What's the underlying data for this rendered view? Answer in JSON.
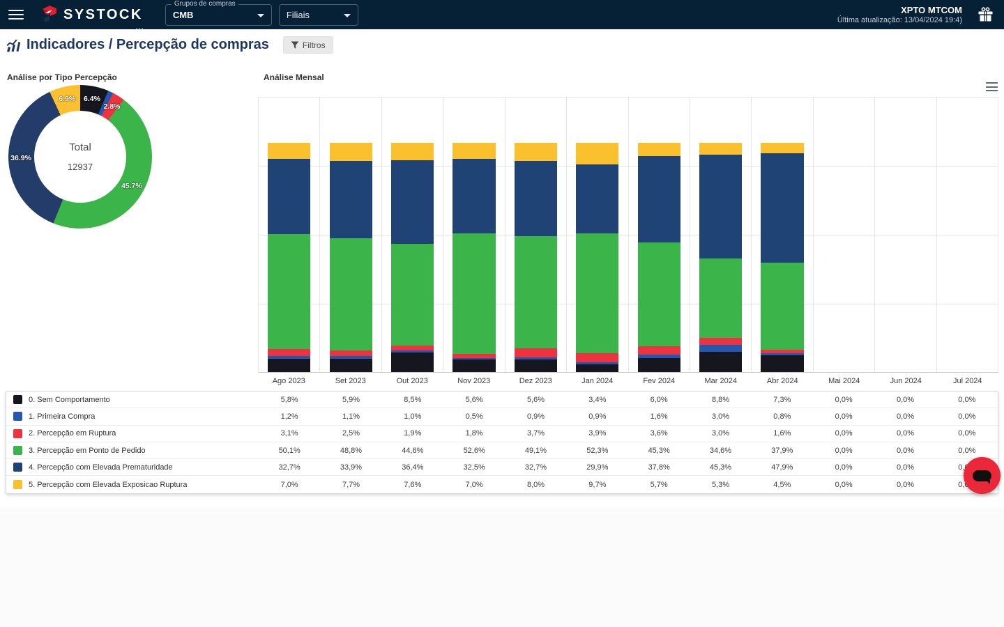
{
  "navbar": {
    "brand": "SYSTOCK",
    "brand_dots": "...",
    "groups_label": "Grupos de compras",
    "groups_value": "CMB",
    "filiais_value": "Filiais",
    "account_name": "XPTO MTCOM",
    "last_update": "Última atualização: 13/04/2024 19:4)"
  },
  "header": {
    "title": "Indicadores / Percepção de compras",
    "filters_label": "Filtros"
  },
  "donut": {
    "title": "Análise por Tipo Percepção",
    "center_label": "Total",
    "center_value": "12937",
    "segments": [
      {
        "label": "0. Sem Comportamento",
        "pct": 6.4,
        "display": "6.4%",
        "color": "#15161e"
      },
      {
        "label": "1. Primeira Compra",
        "pct": 1.2,
        "display": "",
        "color": "#2457b0"
      },
      {
        "label": "2. Percepção em Ruptura",
        "pct": 2.8,
        "display": "2.8%",
        "color": "#ee3340"
      },
      {
        "label": "3. Percepção em Ponto de Pedido",
        "pct": 45.7,
        "display": "45.7%",
        "color": "#3bb54a"
      },
      {
        "label": "4. Percepção com Elevada Prematuridade",
        "pct": 36.9,
        "display": "36.9%",
        "color": "#233c6a"
      },
      {
        "label": "5. Percepção com Elevada Exposicao Ruptura",
        "pct": 6.9,
        "display": "6.9%",
        "color": "#fbc02d"
      }
    ]
  },
  "chart_data": {
    "type": "bar",
    "stacked": true,
    "title": "Análise Mensal",
    "xlabel": "",
    "ylabel": "",
    "ylim": [
      0,
      120
    ],
    "grid": true,
    "categories": [
      "Ago 2023",
      "Set 2023",
      "Out 2023",
      "Nov 2023",
      "Dez 2023",
      "Jan 2024",
      "Fev 2024",
      "Mar 2024",
      "Abr 2024",
      "Mai 2024",
      "Jun 2024",
      "Jul 2024"
    ],
    "series": [
      {
        "name": "0. Sem Comportamento",
        "color": "#15161e",
        "values": [
          5.8,
          5.9,
          8.5,
          5.6,
          5.6,
          3.4,
          6.0,
          8.8,
          7.3,
          0.0,
          0.0,
          0.0
        ]
      },
      {
        "name": "1. Primeira Compra",
        "color": "#2457b0",
        "values": [
          1.2,
          1.1,
          1.0,
          0.5,
          0.9,
          0.9,
          1.6,
          3.0,
          0.8,
          0.0,
          0.0,
          0.0
        ]
      },
      {
        "name": "2. Percepção em Ruptura",
        "color": "#ee3340",
        "values": [
          3.1,
          2.5,
          1.9,
          1.8,
          3.7,
          3.9,
          3.6,
          3.0,
          1.6,
          0.0,
          0.0,
          0.0
        ]
      },
      {
        "name": "3. Percepção em Ponto de Pedido",
        "color": "#3bb54a",
        "values": [
          50.1,
          48.8,
          44.6,
          52.6,
          49.1,
          52.3,
          45.3,
          34.6,
          37.9,
          0.0,
          0.0,
          0.0
        ]
      },
      {
        "name": "4. Percepção com Elevada Prematuridade",
        "color": "#1f4375",
        "values": [
          32.7,
          33.9,
          36.4,
          32.5,
          32.7,
          29.9,
          37.8,
          45.3,
          47.9,
          0.0,
          0.0,
          0.0
        ]
      },
      {
        "name": "5. Percepção com Elevada Exposicao Ruptura",
        "color": "#fbc02d",
        "values": [
          7.0,
          7.7,
          7.6,
          7.0,
          8.0,
          9.7,
          5.7,
          5.3,
          4.5,
          0.0,
          0.0,
          0.0
        ]
      }
    ]
  },
  "colors": {
    "navbar_bg": "#062036",
    "brand_red": "#e11f2e",
    "title_navy": "#1c3763",
    "chat_fab_red": "#ea2839"
  }
}
